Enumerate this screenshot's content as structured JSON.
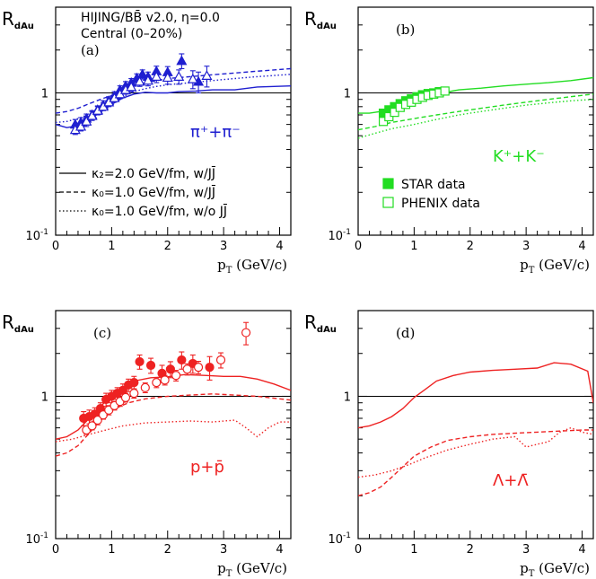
{
  "chart_data": [
    {
      "panel": "a",
      "type": "line",
      "panel_label": "(a)",
      "ylabel_main": "R",
      "ylabel_sub": "dAu",
      "xlabel_main": "p",
      "xlabel_sub": "T",
      "xlabel_unit": "(GeV/c)",
      "xlim": [
        0,
        4.2
      ],
      "ylim": [
        0.1,
        4.0
      ],
      "yscale": "log",
      "x_ticks": [
        "0",
        "1",
        "2",
        "3",
        "4"
      ],
      "y_ticks": [
        "10",
        "1",
        "10"
      ],
      "y_tick_exps": [
        "-1",
        "",
        ""
      ],
      "title_lines": [
        "HIJING/BB̄ v2.0, η=0.0",
        "Central (0–20%)"
      ],
      "particle": "π⁺+π⁻",
      "color": "#1f1fd0",
      "legend": [
        {
          "style": "solid",
          "label": "κ₂=2.0 GeV/fm, w/JJ̄"
        },
        {
          "style": "dashed",
          "label": "κ₀=1.0 GeV/fm, w/JJ̄"
        },
        {
          "style": "dotted",
          "label": "κ₀=1.0 GeV/fm, w/o JJ̄"
        }
      ],
      "series": [
        {
          "style": "solid",
          "x": [
            0.0,
            0.2,
            0.4,
            0.6,
            0.8,
            1.0,
            1.2,
            1.4,
            1.6,
            1.8,
            2.0,
            2.2,
            2.5,
            2.8,
            3.2,
            3.6,
            4.2
          ],
          "y": [
            0.6,
            0.57,
            0.59,
            0.65,
            0.73,
            0.83,
            0.92,
            0.98,
            1.01,
            1.0,
            1.0,
            1.02,
            1.03,
            1.05,
            1.05,
            1.1,
            1.12
          ]
        },
        {
          "style": "dashed",
          "x": [
            0.0,
            0.2,
            0.4,
            0.6,
            0.8,
            1.0,
            1.2,
            1.4,
            1.6,
            1.8,
            2.0,
            2.4,
            2.8,
            3.2,
            3.6,
            4.2
          ],
          "y": [
            0.72,
            0.74,
            0.78,
            0.84,
            0.9,
            0.96,
            1.04,
            1.12,
            1.18,
            1.22,
            1.26,
            1.3,
            1.34,
            1.38,
            1.42,
            1.48
          ]
        },
        {
          "style": "dotted",
          "x": [
            0.0,
            0.2,
            0.4,
            0.6,
            0.8,
            1.0,
            1.2,
            1.4,
            1.6,
            1.8,
            2.0,
            2.4,
            2.8,
            3.2,
            3.6,
            4.2
          ],
          "y": [
            0.62,
            0.63,
            0.66,
            0.71,
            0.78,
            0.86,
            0.94,
            1.02,
            1.07,
            1.11,
            1.14,
            1.18,
            1.22,
            1.26,
            1.3,
            1.35
          ]
        },
        {
          "marker": "filled-triangle",
          "x": [
            0.35,
            0.45,
            0.55,
            0.65,
            0.75,
            0.85,
            0.95,
            1.05,
            1.15,
            1.25,
            1.35,
            1.45,
            1.55,
            1.65,
            1.8,
            2.0,
            2.25,
            2.55
          ],
          "y": [
            0.6,
            0.62,
            0.66,
            0.7,
            0.76,
            0.82,
            0.88,
            0.95,
            1.05,
            1.12,
            1.18,
            1.27,
            1.35,
            1.3,
            1.42,
            1.4,
            1.68,
            1.2
          ],
          "err": [
            0.05,
            0.05,
            0.05,
            0.05,
            0.05,
            0.06,
            0.06,
            0.07,
            0.07,
            0.08,
            0.08,
            0.09,
            0.1,
            0.1,
            0.12,
            0.13,
            0.2,
            0.2
          ]
        },
        {
          "marker": "open-triangle",
          "x": [
            0.35,
            0.45,
            0.55,
            0.65,
            0.75,
            0.85,
            0.95,
            1.05,
            1.15,
            1.25,
            1.35,
            1.5,
            1.65,
            1.8,
            2.0,
            2.2,
            2.45,
            2.7
          ],
          "y": [
            0.55,
            0.58,
            0.63,
            0.69,
            0.75,
            0.8,
            0.86,
            0.92,
            0.98,
            1.05,
            1.1,
            1.2,
            1.22,
            1.3,
            1.28,
            1.3,
            1.25,
            1.32
          ],
          "err": [
            0.04,
            0.04,
            0.05,
            0.05,
            0.05,
            0.05,
            0.06,
            0.06,
            0.07,
            0.07,
            0.08,
            0.09,
            0.1,
            0.12,
            0.13,
            0.15,
            0.18,
            0.22
          ]
        }
      ]
    },
    {
      "panel": "b",
      "type": "line",
      "panel_label": "(b)",
      "ylabel_main": "R",
      "ylabel_sub": "dAu",
      "xlabel_main": "p",
      "xlabel_sub": "T",
      "xlabel_unit": "(GeV/c)",
      "xlim": [
        0,
        4.2
      ],
      "ylim": [
        0.1,
        4.0
      ],
      "yscale": "log",
      "x_ticks": [
        "0",
        "1",
        "2",
        "3",
        "4"
      ],
      "y_ticks": [
        "10",
        "1",
        "10"
      ],
      "y_tick_exps": [
        "-1",
        "",
        ""
      ],
      "particle": "K⁺+K⁻",
      "color": "#22dd22",
      "legend": [
        {
          "marker": "filled-square",
          "label": "STAR data"
        },
        {
          "marker": "open-square",
          "label": "PHENIX data"
        }
      ],
      "series": [
        {
          "style": "solid",
          "x": [
            0.0,
            0.2,
            0.4,
            0.6,
            0.8,
            1.0,
            1.2,
            1.5,
            1.8,
            2.2,
            2.6,
            3.0,
            3.4,
            3.8,
            4.2
          ],
          "y": [
            0.72,
            0.72,
            0.74,
            0.78,
            0.84,
            0.9,
            0.95,
            1.0,
            1.05,
            1.08,
            1.12,
            1.15,
            1.18,
            1.22,
            1.28
          ]
        },
        {
          "style": "dashed",
          "x": [
            0.0,
            0.3,
            0.6,
            1.0,
            1.4,
            1.8,
            2.2,
            2.6,
            3.0,
            3.4,
            3.8,
            4.2
          ],
          "y": [
            0.55,
            0.58,
            0.62,
            0.66,
            0.7,
            0.74,
            0.78,
            0.82,
            0.86,
            0.9,
            0.94,
            0.98
          ]
        },
        {
          "style": "dotted",
          "x": [
            0.0,
            0.3,
            0.6,
            1.0,
            1.4,
            1.8,
            2.2,
            2.6,
            3.0,
            3.4,
            3.8,
            4.2
          ],
          "y": [
            0.48,
            0.52,
            0.56,
            0.6,
            0.65,
            0.7,
            0.74,
            0.78,
            0.82,
            0.85,
            0.88,
            0.9
          ]
        },
        {
          "marker": "filled-square",
          "x": [
            0.45,
            0.55,
            0.65,
            0.75,
            0.85,
            0.95,
            1.05,
            1.15,
            1.25,
            1.35,
            1.45
          ],
          "y": [
            0.72,
            0.76,
            0.8,
            0.84,
            0.88,
            0.91,
            0.94,
            0.97,
            0.99,
            1.0,
            1.02
          ]
        },
        {
          "marker": "open-square",
          "x": [
            0.45,
            0.55,
            0.65,
            0.75,
            0.85,
            0.95,
            1.05,
            1.15,
            1.25,
            1.35,
            1.45,
            1.55
          ],
          "y": [
            0.63,
            0.68,
            0.73,
            0.79,
            0.83,
            0.86,
            0.9,
            0.93,
            0.96,
            0.98,
            1.0,
            1.03
          ]
        }
      ]
    },
    {
      "panel": "c",
      "type": "line",
      "panel_label": "(c)",
      "ylabel_main": "R",
      "ylabel_sub": "dAu",
      "xlabel_main": "p",
      "xlabel_sub": "T",
      "xlabel_unit": "(GeV/c)",
      "xlim": [
        0,
        4.2
      ],
      "ylim": [
        0.1,
        4.0
      ],
      "yscale": "log",
      "x_ticks": [
        "0",
        "1",
        "2",
        "3",
        "4"
      ],
      "y_ticks": [
        "10",
        "1",
        "10"
      ],
      "y_tick_exps": [
        "-1",
        "",
        ""
      ],
      "particle": "p+p̄",
      "color": "#ee2222",
      "series": [
        {
          "style": "solid",
          "x": [
            0.0,
            0.2,
            0.4,
            0.6,
            0.8,
            1.0,
            1.2,
            1.4,
            1.7,
            2.0,
            2.3,
            2.7,
            3.0,
            3.3,
            3.6,
            3.9,
            4.2
          ],
          "y": [
            0.5,
            0.52,
            0.58,
            0.7,
            0.85,
            1.0,
            1.15,
            1.28,
            1.35,
            1.37,
            1.42,
            1.4,
            1.38,
            1.38,
            1.32,
            1.22,
            1.1
          ]
        },
        {
          "style": "dashed",
          "x": [
            0.0,
            0.2,
            0.4,
            0.6,
            0.8,
            1.0,
            1.3,
            1.6,
            2.0,
            2.4,
            2.8,
            3.2,
            3.6,
            4.0,
            4.2
          ],
          "y": [
            0.38,
            0.4,
            0.45,
            0.55,
            0.68,
            0.8,
            0.9,
            0.96,
            1.0,
            1.02,
            1.04,
            1.02,
            1.0,
            0.96,
            0.94
          ]
        },
        {
          "style": "dotted",
          "x": [
            0.0,
            0.3,
            0.6,
            0.9,
            1.2,
            1.6,
            2.0,
            2.4,
            2.8,
            3.2,
            3.4,
            3.6,
            3.8,
            4.0,
            4.2
          ],
          "y": [
            0.48,
            0.5,
            0.54,
            0.58,
            0.62,
            0.65,
            0.66,
            0.67,
            0.66,
            0.68,
            0.6,
            0.52,
            0.6,
            0.66,
            0.66
          ]
        },
        {
          "marker": "filled-circle",
          "x": [
            0.5,
            0.6,
            0.7,
            0.8,
            0.9,
            1.0,
            1.1,
            1.2,
            1.3,
            1.4,
            1.5,
            1.7,
            1.9,
            2.05,
            2.25,
            2.45,
            2.75
          ],
          "y": [
            0.7,
            0.72,
            0.75,
            0.82,
            0.95,
            1.0,
            1.05,
            1.1,
            1.2,
            1.25,
            1.75,
            1.65,
            1.45,
            1.55,
            1.8,
            1.7,
            1.6
          ],
          "err": [
            0.08,
            0.08,
            0.08,
            0.08,
            0.1,
            0.1,
            0.1,
            0.12,
            0.12,
            0.13,
            0.2,
            0.2,
            0.2,
            0.2,
            0.25,
            0.25,
            0.3
          ]
        },
        {
          "marker": "open-circle",
          "x": [
            0.55,
            0.65,
            0.75,
            0.85,
            0.95,
            1.05,
            1.15,
            1.25,
            1.4,
            1.6,
            1.8,
            1.95,
            2.15,
            2.35,
            2.55,
            2.95,
            3.4
          ],
          "y": [
            0.58,
            0.62,
            0.68,
            0.74,
            0.8,
            0.86,
            0.92,
            0.98,
            1.05,
            1.15,
            1.25,
            1.3,
            1.4,
            1.55,
            1.6,
            1.8,
            2.8
          ],
          "err": [
            0.04,
            0.04,
            0.05,
            0.05,
            0.06,
            0.06,
            0.07,
            0.07,
            0.08,
            0.09,
            0.1,
            0.1,
            0.12,
            0.14,
            0.16,
            0.22,
            0.5
          ]
        }
      ]
    },
    {
      "panel": "d",
      "type": "line",
      "panel_label": "(d)",
      "ylabel_main": "R",
      "ylabel_sub": "dAu",
      "xlabel_main": "p",
      "xlabel_sub": "T",
      "xlabel_unit": "(GeV/c)",
      "xlim": [
        0,
        4.2
      ],
      "ylim": [
        0.1,
        4.0
      ],
      "yscale": "log",
      "x_ticks": [
        "0",
        "1",
        "2",
        "3",
        "4"
      ],
      "y_ticks": [
        "10",
        "1",
        "10"
      ],
      "y_tick_exps": [
        "-1",
        "",
        ""
      ],
      "particle": "Λ+Λ̄",
      "color": "#ee2222",
      "series": [
        {
          "style": "solid",
          "x": [
            0.0,
            0.2,
            0.4,
            0.6,
            0.8,
            1.0,
            1.2,
            1.4,
            1.7,
            2.0,
            2.4,
            2.8,
            3.2,
            3.5,
            3.8,
            4.1,
            4.2
          ],
          "y": [
            0.6,
            0.62,
            0.66,
            0.72,
            0.82,
            0.98,
            1.12,
            1.28,
            1.4,
            1.48,
            1.52,
            1.55,
            1.58,
            1.72,
            1.68,
            1.5,
            0.9
          ]
        },
        {
          "style": "dashed",
          "x": [
            0.0,
            0.2,
            0.4,
            0.6,
            0.8,
            1.0,
            1.3,
            1.6,
            2.0,
            2.4,
            2.8,
            3.2,
            3.6,
            4.0,
            4.2
          ],
          "y": [
            0.2,
            0.21,
            0.23,
            0.27,
            0.32,
            0.38,
            0.44,
            0.49,
            0.52,
            0.54,
            0.55,
            0.56,
            0.57,
            0.58,
            0.58
          ]
        },
        {
          "style": "dotted",
          "x": [
            0.0,
            0.3,
            0.6,
            0.9,
            1.2,
            1.6,
            2.0,
            2.4,
            2.8,
            3.0,
            3.2,
            3.4,
            3.6,
            3.8,
            4.0,
            4.2
          ],
          "y": [
            0.27,
            0.28,
            0.3,
            0.33,
            0.37,
            0.42,
            0.46,
            0.5,
            0.52,
            0.44,
            0.46,
            0.48,
            0.56,
            0.6,
            0.56,
            0.54
          ]
        }
      ]
    }
  ]
}
